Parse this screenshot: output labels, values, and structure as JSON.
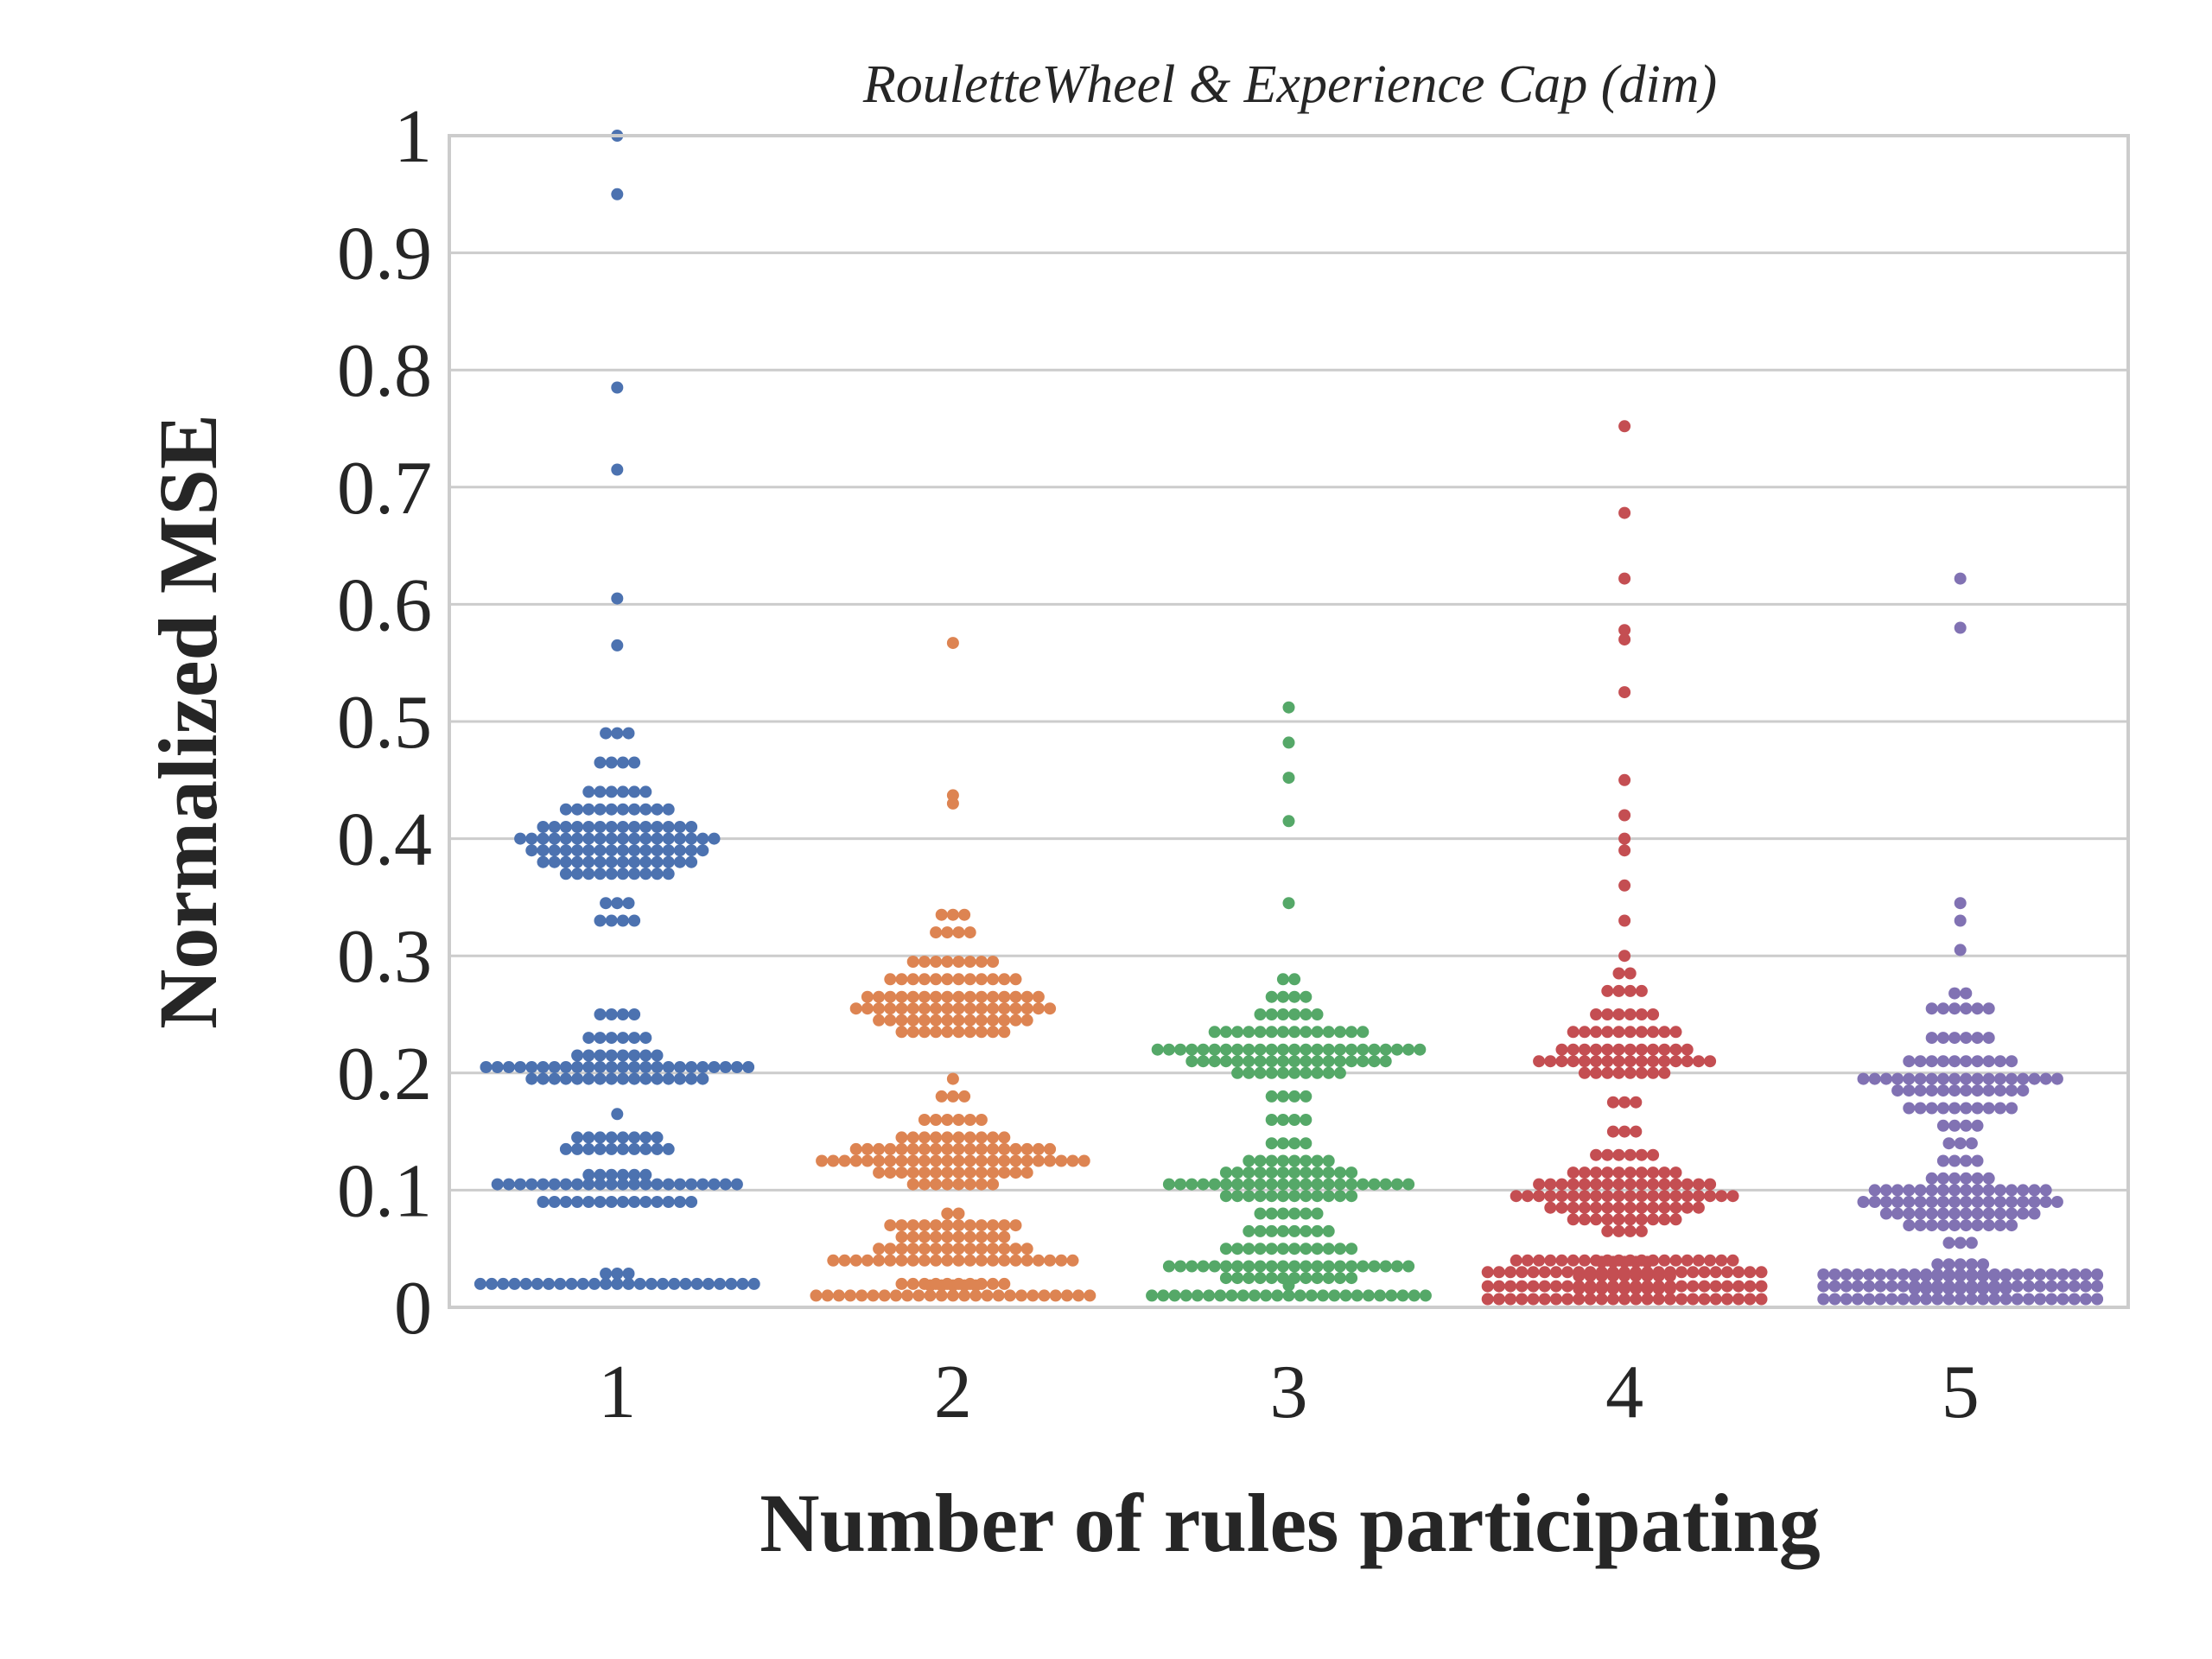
{
  "chart_data": {
    "type": "scatter",
    "subtype": "swarm",
    "title": "RouletteWheel & Experience Cap (dim)",
    "xlabel": "Number of rules participating",
    "ylabel": "Normalized MSE",
    "categories": [
      "1",
      "2",
      "3",
      "4",
      "5"
    ],
    "ylim": [
      0,
      1
    ],
    "yticks": [
      "0",
      "0.1",
      "0.2",
      "0.3",
      "0.4",
      "0.5",
      "0.6",
      "0.7",
      "0.8",
      "0.9",
      "1"
    ],
    "grid": "horizontal",
    "series": [
      {
        "category": "1",
        "color": "#4c72b0",
        "clusters": [
          {
            "value": 0.02,
            "count": 28
          },
          {
            "value": 0.09,
            "count": 14
          },
          {
            "value": 0.105,
            "count": 22
          },
          {
            "value": 0.113,
            "count": 6
          },
          {
            "value": 0.135,
            "count": 10
          },
          {
            "value": 0.145,
            "count": 8
          },
          {
            "value": 0.165,
            "count": 1
          },
          {
            "value": 0.195,
            "count": 16
          },
          {
            "value": 0.205,
            "count": 24
          },
          {
            "value": 0.215,
            "count": 8
          },
          {
            "value": 0.23,
            "count": 6
          },
          {
            "value": 0.25,
            "count": 4
          },
          {
            "value": 0.33,
            "count": 4
          },
          {
            "value": 0.345,
            "count": 3
          },
          {
            "value": 0.37,
            "count": 10
          },
          {
            "value": 0.38,
            "count": 14
          },
          {
            "value": 0.39,
            "count": 16
          },
          {
            "value": 0.4,
            "count": 18
          },
          {
            "value": 0.41,
            "count": 14
          },
          {
            "value": 0.425,
            "count": 10
          },
          {
            "value": 0.44,
            "count": 6
          },
          {
            "value": 0.465,
            "count": 4
          },
          {
            "value": 0.49,
            "count": 3
          }
        ],
        "outliers": [
          0.565,
          0.605,
          0.715,
          0.785,
          0.95,
          1.0
        ]
      },
      {
        "category": "2",
        "color": "#dd8452",
        "clusters": [
          {
            "value": 0.01,
            "count": 30
          },
          {
            "value": 0.02,
            "count": 10
          },
          {
            "value": 0.04,
            "count": 22
          },
          {
            "value": 0.05,
            "count": 14
          },
          {
            "value": 0.06,
            "count": 10
          },
          {
            "value": 0.07,
            "count": 12
          },
          {
            "value": 0.08,
            "count": 2
          },
          {
            "value": 0.105,
            "count": 8
          },
          {
            "value": 0.115,
            "count": 14
          },
          {
            "value": 0.125,
            "count": 24
          },
          {
            "value": 0.135,
            "count": 18
          },
          {
            "value": 0.145,
            "count": 10
          },
          {
            "value": 0.16,
            "count": 6
          },
          {
            "value": 0.18,
            "count": 3
          },
          {
            "value": 0.195,
            "count": 1
          },
          {
            "value": 0.235,
            "count": 10
          },
          {
            "value": 0.245,
            "count": 14
          },
          {
            "value": 0.255,
            "count": 18
          },
          {
            "value": 0.265,
            "count": 16
          },
          {
            "value": 0.28,
            "count": 12
          },
          {
            "value": 0.295,
            "count": 8
          },
          {
            "value": 0.32,
            "count": 4
          },
          {
            "value": 0.335,
            "count": 3
          }
        ],
        "outliers": [
          0.43,
          0.437,
          0.567
        ]
      },
      {
        "category": "3",
        "color": "#55a868",
        "clusters": [
          {
            "value": 0.01,
            "count": 26
          },
          {
            "value": 0.025,
            "count": 12
          },
          {
            "value": 0.035,
            "count": 22
          },
          {
            "value": 0.05,
            "count": 12
          },
          {
            "value": 0.065,
            "count": 8
          },
          {
            "value": 0.08,
            "count": 6
          },
          {
            "value": 0.095,
            "count": 12
          },
          {
            "value": 0.105,
            "count": 22
          },
          {
            "value": 0.115,
            "count": 12
          },
          {
            "value": 0.125,
            "count": 8
          },
          {
            "value": 0.14,
            "count": 4
          },
          {
            "value": 0.16,
            "count": 4
          },
          {
            "value": 0.18,
            "count": 4
          },
          {
            "value": 0.2,
            "count": 10
          },
          {
            "value": 0.21,
            "count": 18
          },
          {
            "value": 0.22,
            "count": 24
          },
          {
            "value": 0.235,
            "count": 14
          },
          {
            "value": 0.25,
            "count": 6
          },
          {
            "value": 0.265,
            "count": 4
          },
          {
            "value": 0.28,
            "count": 2
          }
        ],
        "outliers": [
          0.345,
          0.415,
          0.452,
          0.482,
          0.512
        ]
      },
      {
        "category": "4",
        "color": "#c44e52",
        "clusters": [
          {
            "value": 0.007,
            "count": 34
          },
          {
            "value": 0.018,
            "count": 34
          },
          {
            "value": 0.03,
            "count": 30
          },
          {
            "value": 0.04,
            "count": 20
          },
          {
            "value": 0.065,
            "count": 4
          },
          {
            "value": 0.075,
            "count": 10
          },
          {
            "value": 0.085,
            "count": 14
          },
          {
            "value": 0.095,
            "count": 20
          },
          {
            "value": 0.105,
            "count": 16
          },
          {
            "value": 0.115,
            "count": 10
          },
          {
            "value": 0.13,
            "count": 6
          },
          {
            "value": 0.15,
            "count": 3
          },
          {
            "value": 0.175,
            "count": 3
          },
          {
            "value": 0.2,
            "count": 8
          },
          {
            "value": 0.21,
            "count": 16
          },
          {
            "value": 0.22,
            "count": 12
          },
          {
            "value": 0.235,
            "count": 10
          },
          {
            "value": 0.25,
            "count": 6
          },
          {
            "value": 0.27,
            "count": 4
          },
          {
            "value": 0.285,
            "count": 2
          }
        ],
        "outliers": [
          0.3,
          0.33,
          0.36,
          0.39,
          0.4,
          0.42,
          0.45,
          0.525,
          0.57,
          0.578,
          0.622,
          0.678,
          0.752
        ]
      },
      {
        "category": "5",
        "color": "#8172b3",
        "clusters": [
          {
            "value": 0.007,
            "count": 34
          },
          {
            "value": 0.018,
            "count": 34
          },
          {
            "value": 0.028,
            "count": 30
          },
          {
            "value": 0.055,
            "count": 3
          },
          {
            "value": 0.07,
            "count": 10
          },
          {
            "value": 0.08,
            "count": 14
          },
          {
            "value": 0.09,
            "count": 18
          },
          {
            "value": 0.1,
            "count": 16
          },
          {
            "value": 0.11,
            "count": 6
          },
          {
            "value": 0.125,
            "count": 4
          },
          {
            "value": 0.14,
            "count": 3
          },
          {
            "value": 0.155,
            "count": 4
          },
          {
            "value": 0.17,
            "count": 10
          },
          {
            "value": 0.185,
            "count": 12
          },
          {
            "value": 0.195,
            "count": 18
          },
          {
            "value": 0.21,
            "count": 10
          },
          {
            "value": 0.23,
            "count": 6
          },
          {
            "value": 0.255,
            "count": 6
          },
          {
            "value": 0.268,
            "count": 2
          }
        ],
        "outliers": [
          0.305,
          0.33,
          0.345,
          0.58,
          0.622
        ]
      }
    ]
  }
}
